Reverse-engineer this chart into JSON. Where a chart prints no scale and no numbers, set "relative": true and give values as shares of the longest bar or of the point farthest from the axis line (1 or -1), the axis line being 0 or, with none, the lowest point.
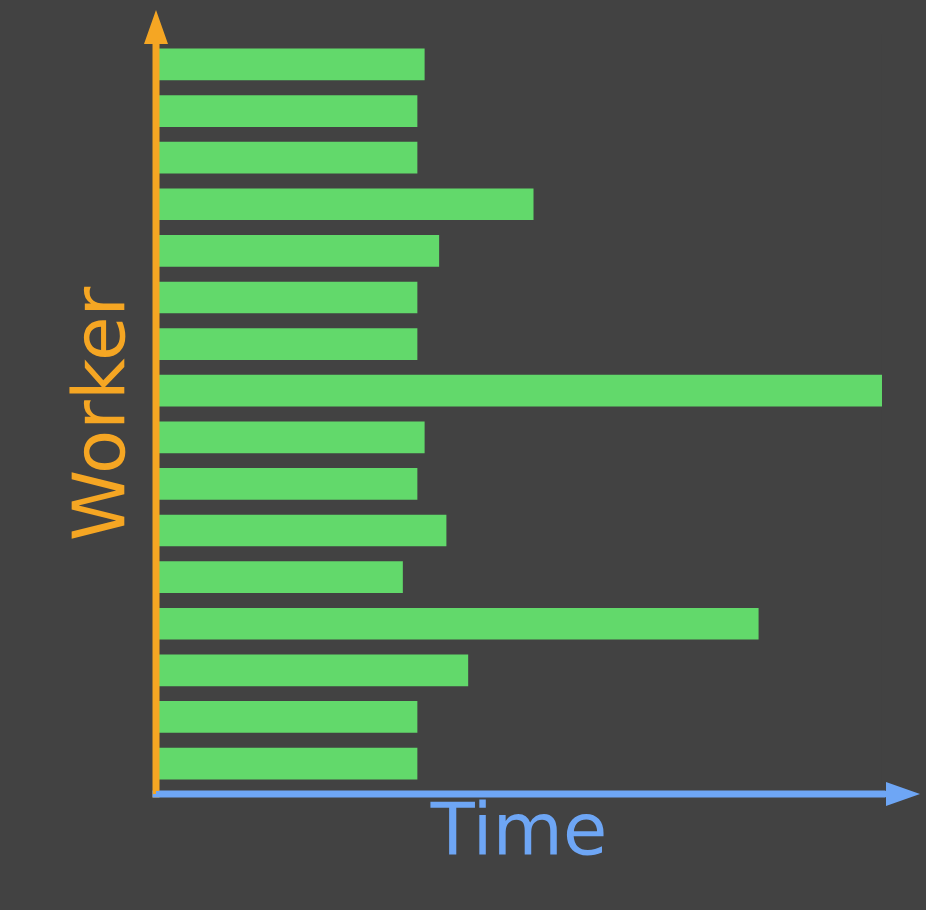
{
  "chart_data": {
    "type": "bar",
    "orientation": "horizontal",
    "relative": true,
    "xlabel": "Time",
    "ylabel": "Worker",
    "categories": [
      null,
      null,
      null,
      null,
      null,
      null,
      null,
      null,
      null,
      null,
      null,
      null,
      null,
      null,
      null,
      null
    ],
    "values": [
      0.37,
      0.36,
      0.36,
      0.52,
      0.39,
      0.36,
      0.36,
      1,
      0.37,
      0.36,
      0.4,
      0.34,
      0.83,
      0.43,
      0.36,
      0.36
    ],
    "color": "#62d96b"
  }
}
